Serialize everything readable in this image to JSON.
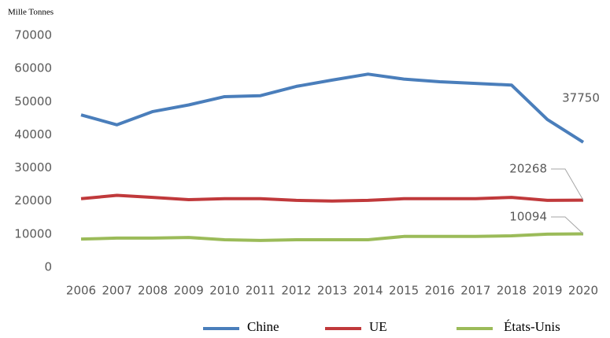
{
  "chart_data": {
    "type": "line",
    "y_label": "Mille Tonnes",
    "categories": [
      "2006",
      "2007",
      "2008",
      "2009",
      "2010",
      "2011",
      "2012",
      "2013",
      "2014",
      "2015",
      "2016",
      "2017",
      "2018",
      "2019",
      "2020"
    ],
    "series": [
      {
        "name": "Chine",
        "color": "#4a7ebb",
        "values": [
          46000,
          43000,
          47000,
          49000,
          51500,
          51800,
          54600,
          56500,
          58300,
          56800,
          56000,
          55500,
          55000,
          44600,
          37750
        ]
      },
      {
        "name": "UE",
        "color": "#c0393b",
        "values": [
          20700,
          21700,
          21100,
          20400,
          20700,
          20700,
          20200,
          20000,
          20200,
          20700,
          20700,
          20700,
          21100,
          20200,
          20268
        ]
      },
      {
        "name": "États-Unis",
        "color": "#9bbb59",
        "values": [
          8500,
          8800,
          8800,
          9000,
          8300,
          8100,
          8300,
          8300,
          8300,
          9300,
          9300,
          9300,
          9500,
          10000,
          10094
        ]
      }
    ],
    "ylim": [
      0,
      70000
    ],
    "yticks": [
      0,
      10000,
      20000,
      30000,
      40000,
      50000,
      60000,
      70000
    ],
    "grid": false,
    "legend": "bottom"
  }
}
